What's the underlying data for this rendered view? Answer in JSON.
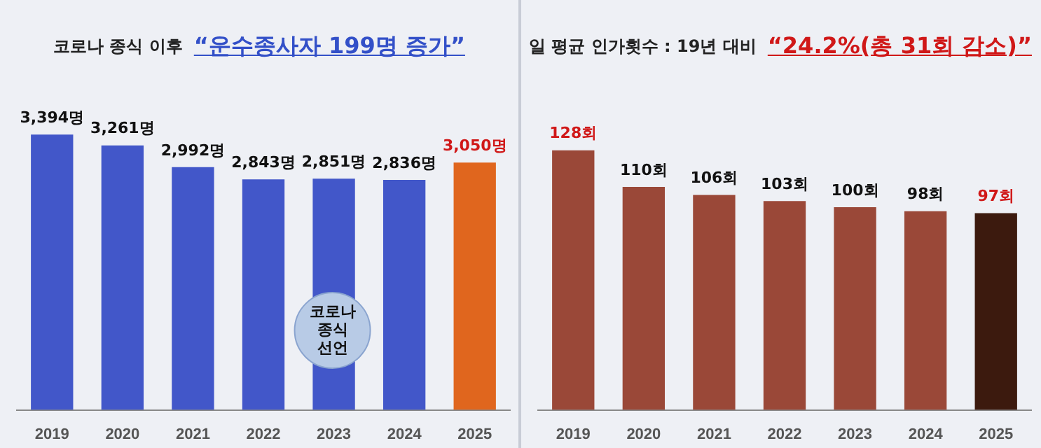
{
  "chart_data": [
    {
      "type": "bar",
      "title": "코로나 종식 이후",
      "subtitle": "“운수종사자 199명 증가”",
      "categories": [
        "2019",
        "2020",
        "2021",
        "2022",
        "2023",
        "2024",
        "2025"
      ],
      "values": [
        3394,
        3261,
        2992,
        2843,
        2851,
        2836,
        3050
      ],
      "colors": [
        "#4257c9",
        "#4257c9",
        "#4257c9",
        "#4257c9",
        "#4257c9",
        "#4257c9",
        "#e0661e"
      ],
      "value_labels": [
        "3,394명",
        "3,261명",
        "2,992명",
        "2,843명",
        "2,851명",
        "2,836명",
        "3,050명"
      ],
      "annotations": [
        "코로나 종식 선언"
      ]
    },
    {
      "type": "bar",
      "title": "일 평균 인가횟수 : 19년 대비",
      "subtitle": "“24.2%(총 31회 감소)”",
      "categories": [
        "2019",
        "2020",
        "2021",
        "2022",
        "2023",
        "2024",
        "2025"
      ],
      "values": [
        128,
        110,
        106,
        103,
        100,
        98,
        97
      ],
      "colors": [
        "#9a4838",
        "#9a4838",
        "#9a4838",
        "#9a4838",
        "#9a4838",
        "#9a4838",
        "#3c1a0e"
      ],
      "value_labels": [
        "128회",
        "110회",
        "106회",
        "103회",
        "100회",
        "98회",
        "97회"
      ]
    }
  ]
}
